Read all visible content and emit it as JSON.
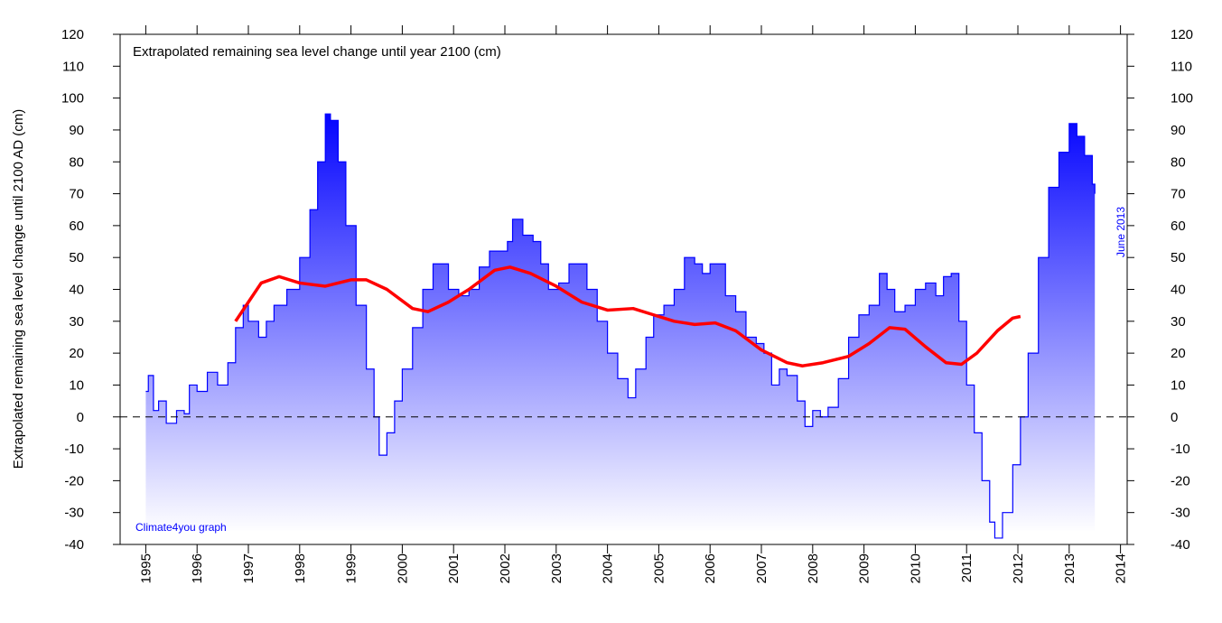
{
  "chart_data": {
    "type": "area",
    "title": "Extrapolated remaining sea level change until year 2100 (cm)",
    "y_label": "Extrapolated remaining sea level change until 2100 AD (cm)",
    "annotations": [
      "Climate4you graph",
      "June 2013"
    ],
    "xlim": [
      1994.5,
      2014.13
    ],
    "xticks": [
      1995,
      1996,
      1997,
      1998,
      1999,
      2000,
      2001,
      2002,
      2003,
      2004,
      2005,
      2006,
      2007,
      2008,
      2009,
      2010,
      2011,
      2012,
      2013,
      2014
    ],
    "ylim": [
      -40,
      120
    ],
    "yticks": [
      -40,
      -30,
      -20,
      -10,
      0,
      10,
      20,
      30,
      40,
      50,
      60,
      70,
      80,
      90,
      100,
      110,
      120
    ],
    "y2lim": [
      -40,
      120
    ],
    "y2ticks": [
      -40,
      -30,
      -20,
      -10,
      0,
      10,
      20,
      30,
      40,
      50,
      60,
      70,
      80,
      90,
      100,
      110,
      120
    ],
    "grid": false,
    "zero_line": "dashed",
    "series": [
      {
        "type": "area",
        "color": "#0000ff",
        "x": [
          1995.0,
          1995.05,
          1995.15,
          1995.25,
          1995.4,
          1995.6,
          1995.75,
          1995.85,
          1996.0,
          1996.2,
          1996.4,
          1996.6,
          1996.75,
          1996.9,
          1997.0,
          1997.2,
          1997.35,
          1997.5,
          1997.75,
          1998.0,
          1998.2,
          1998.35,
          1998.5,
          1998.6,
          1998.75,
          1998.9,
          1999.1,
          1999.3,
          1999.45,
          1999.55,
          1999.7,
          1999.85,
          2000.0,
          2000.2,
          2000.4,
          2000.6,
          2000.75,
          2000.9,
          2001.1,
          2001.3,
          2001.5,
          2001.7,
          2001.9,
          2002.05,
          2002.15,
          2002.35,
          2002.55,
          2002.7,
          2002.85,
          2003.05,
          2003.25,
          2003.45,
          2003.6,
          2003.8,
          2004.0,
          2004.2,
          2004.4,
          2004.55,
          2004.75,
          2004.9,
          2005.1,
          2005.3,
          2005.5,
          2005.7,
          2005.85,
          2006.0,
          2006.15,
          2006.3,
          2006.5,
          2006.7,
          2006.9,
          2007.05,
          2007.2,
          2007.35,
          2007.5,
          2007.7,
          2007.85,
          2008.0,
          2008.15,
          2008.3,
          2008.5,
          2008.7,
          2008.9,
          2009.1,
          2009.3,
          2009.45,
          2009.6,
          2009.8,
          2010.0,
          2010.2,
          2010.4,
          2010.55,
          2010.7,
          2010.85,
          2011.0,
          2011.15,
          2011.3,
          2011.45,
          2011.55,
          2011.7,
          2011.9,
          2012.05,
          2012.2,
          2012.4,
          2012.6,
          2012.8,
          2013.0,
          2013.15,
          2013.3,
          2013.45,
          2013.5
        ],
        "values": [
          8,
          13,
          2,
          5,
          -2,
          2,
          1,
          10,
          8,
          14,
          10,
          17,
          28,
          35,
          30,
          25,
          30,
          35,
          40,
          50,
          65,
          80,
          95,
          93,
          80,
          60,
          35,
          15,
          0,
          -12,
          -5,
          5,
          15,
          28,
          40,
          48,
          48,
          40,
          38,
          40,
          47,
          52,
          52,
          55,
          62,
          57,
          55,
          48,
          40,
          42,
          48,
          48,
          40,
          30,
          20,
          12,
          6,
          15,
          25,
          32,
          35,
          40,
          50,
          48,
          45,
          48,
          48,
          38,
          33,
          25,
          23,
          20,
          10,
          15,
          13,
          5,
          -3,
          2,
          0,
          3,
          12,
          25,
          32,
          35,
          45,
          40,
          33,
          35,
          40,
          42,
          38,
          44,
          45,
          30,
          10,
          -5,
          -20,
          -33,
          -38,
          -30,
          -15,
          0,
          20,
          50,
          72,
          83,
          92,
          88,
          82,
          73,
          70
        ]
      },
      {
        "type": "line",
        "color": "#ff0000",
        "x": [
          1996.75,
          1997.0,
          1997.25,
          1997.6,
          1998.0,
          1998.5,
          1999.0,
          1999.3,
          1999.7,
          2000.2,
          2000.5,
          2000.9,
          2001.3,
          2001.8,
          2002.1,
          2002.5,
          2003.0,
          2003.5,
          2004.0,
          2004.5,
          2004.9,
          2005.3,
          2005.7,
          2006.1,
          2006.5,
          2007.0,
          2007.5,
          2007.8,
          2008.2,
          2008.7,
          2009.1,
          2009.5,
          2009.8,
          2010.2,
          2010.6,
          2010.9,
          2011.2,
          2011.6,
          2011.9,
          2012.05
        ],
        "values": [
          30,
          36,
          42,
          44,
          42,
          41,
          43,
          43,
          40,
          34,
          33,
          36,
          40,
          46,
          47,
          45,
          41,
          36,
          33.5,
          34,
          32,
          30,
          29,
          29.5,
          27,
          21,
          17,
          16,
          17,
          19,
          23,
          28,
          27.5,
          22,
          17,
          16.5,
          20,
          27,
          31,
          31.5
        ]
      }
    ]
  }
}
